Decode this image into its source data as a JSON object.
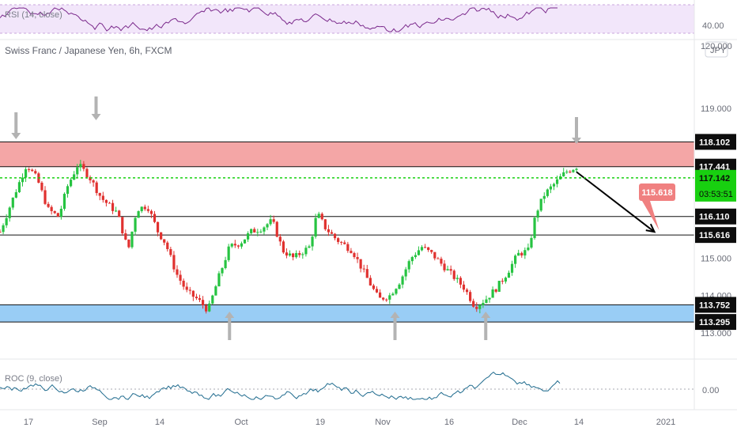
{
  "chart_title": "Swiss Franc / Japanese Yen, 6h, FXCM",
  "currency_badge": "JPY",
  "colors": {
    "up": "#26c341",
    "down": "#e0312f",
    "resistance_zone": "#f4a6a6",
    "support_zone": "#99cdf5",
    "rsi_band": "#f2e6fa",
    "rsi_line": "#7b2a8c",
    "roc_line": "#1f6b8e",
    "current_price": "#18d010",
    "target_label": "#f08080"
  },
  "rsi_panel": {
    "label": "RSI (14, close)",
    "axis_value": "40.00"
  },
  "roc_panel": {
    "label": "ROC (9, close)",
    "axis_value": "0.00"
  },
  "chart_data": {
    "type": "candlestick",
    "ylim": [
      112.6,
      120.2
    ],
    "y_ticks": [
      "120.000",
      "119.000",
      "115.000",
      "114.000",
      "113.000"
    ],
    "x_ticks": [
      "17",
      "Sep",
      "14",
      "Oct",
      "19",
      "Nov",
      "16",
      "Dec",
      "14",
      "2021"
    ],
    "price_path": [
      [
        0,
        115.7
      ],
      [
        1.5,
        116.8
      ],
      [
        2.5,
        117.5
      ],
      [
        3.5,
        117.1
      ],
      [
        4.5,
        116.3
      ],
      [
        5.5,
        116.1
      ],
      [
        6.3,
        116.9
      ],
      [
        7.3,
        117.5
      ],
      [
        8.3,
        117.2
      ],
      [
        9.5,
        116.6
      ],
      [
        11,
        116.2
      ],
      [
        12,
        115.2
      ],
      [
        12.8,
        116.3
      ],
      [
        13.8,
        116.4
      ],
      [
        14.8,
        115.7
      ],
      [
        15.5,
        115.4
      ],
      [
        16.5,
        114.6
      ],
      [
        17.5,
        114.1
      ],
      [
        18.5,
        113.9
      ],
      [
        19.5,
        113.6
      ],
      [
        20.5,
        114.5
      ],
      [
        21.5,
        115.3
      ],
      [
        22.5,
        115.4
      ],
      [
        23.5,
        115.7
      ],
      [
        24.5,
        115.8
      ],
      [
        25.5,
        116.0
      ],
      [
        26.5,
        115.2
      ],
      [
        27.5,
        115.0
      ],
      [
        29,
        115.3
      ],
      [
        29.7,
        116.2
      ],
      [
        30.5,
        115.8
      ],
      [
        31.5,
        115.5
      ],
      [
        33,
        115.2
      ],
      [
        34.5,
        114.4
      ],
      [
        35.5,
        113.9
      ],
      [
        36.5,
        114.0
      ],
      [
        37.5,
        114.4
      ],
      [
        38.5,
        115.0
      ],
      [
        39.5,
        115.3
      ],
      [
        40.5,
        115.1
      ],
      [
        41.5,
        114.8
      ],
      [
        42.5,
        114.5
      ],
      [
        43.5,
        114.2
      ],
      [
        44.5,
        113.7
      ],
      [
        45.5,
        113.9
      ],
      [
        46.5,
        114.2
      ],
      [
        47.5,
        114.6
      ],
      [
        48.5,
        115.1
      ],
      [
        49.5,
        115.2
      ],
      [
        50.2,
        116.2
      ],
      [
        51,
        116.7
      ],
      [
        52,
        117.0
      ],
      [
        53,
        117.3
      ],
      [
        54,
        117.441
      ]
    ],
    "candle_count": 180,
    "levels": [
      {
        "value": 118.102,
        "label": "118.102"
      },
      {
        "value": 117.441,
        "label": "117.441"
      },
      {
        "value": 116.11,
        "label": "116.110"
      },
      {
        "value": 115.616,
        "label": "115.616"
      },
      {
        "value": 113.752,
        "label": "113.752"
      },
      {
        "value": 113.295,
        "label": "113.295"
      }
    ],
    "zones": [
      {
        "name": "resistance",
        "from": 117.441,
        "to": 118.102
      },
      {
        "name": "support",
        "from": 113.295,
        "to": 113.752
      }
    ],
    "current_price": {
      "value": 117.142,
      "label": "117.142",
      "countdown": "03:53:51"
    },
    "projection": {
      "from_x": 54,
      "from_y": 117.3,
      "to_x": 61.3,
      "to_y": 115.7,
      "label": "115.618"
    },
    "down_arrows_x": [
      1.5,
      9.0,
      54.0
    ],
    "up_arrows_x": [
      21.5,
      37.0,
      45.5
    ]
  }
}
